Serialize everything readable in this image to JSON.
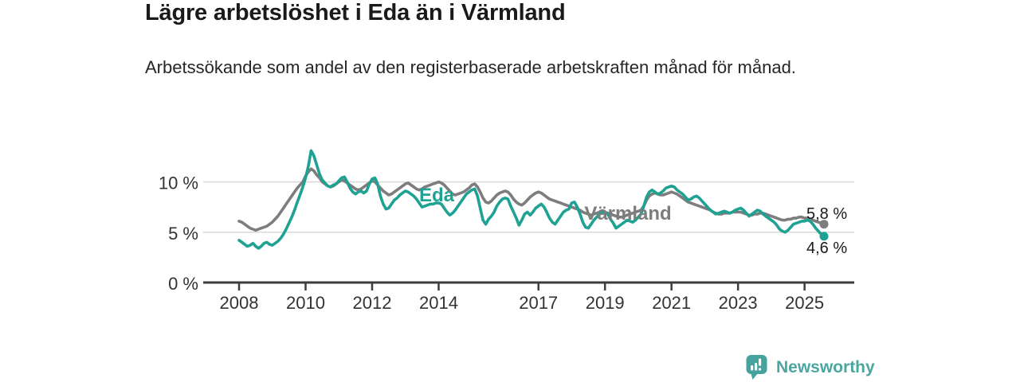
{
  "header": {
    "title": "Lägre arbetslöshet i Eda än i Värmland",
    "subtitle": "Arbetssökande som andel av den registerbaserade arbetskraften månad för månad."
  },
  "chart_data": {
    "type": "line",
    "title": "Lägre arbetslöshet i Eda än i Värmland",
    "subtitle": "Arbetssökande som andel av den registerbaserade arbetskraften månad för månad.",
    "x_unit": "month",
    "x_start": "2008-01",
    "x_end": "2025-08",
    "x_tick_labels": [
      "2008",
      "2010",
      "2012",
      "2014",
      "2017",
      "2019",
      "2021",
      "2023",
      "2025"
    ],
    "y_tick_labels": [
      "0 %",
      "5 %",
      "10 %"
    ],
    "y_tick_values": [
      0,
      5,
      10
    ],
    "ylim": [
      0,
      14
    ],
    "grid": "horizontal",
    "legend_position": "inline-labels",
    "series": [
      {
        "id": "varmland",
        "name": "Värmland",
        "color": "#7d7d7d",
        "end_label": "5,8 %",
        "end_value": 5.8,
        "values": [
          6.1,
          6.0,
          5.8,
          5.6,
          5.4,
          5.3,
          5.2,
          5.3,
          5.4,
          5.5,
          5.6,
          5.8,
          6.0,
          6.3,
          6.6,
          7.0,
          7.4,
          7.8,
          8.2,
          8.6,
          9.0,
          9.4,
          9.7,
          10.0,
          10.6,
          11.0,
          11.3,
          11.1,
          10.7,
          10.4,
          10.0,
          9.8,
          9.6,
          9.5,
          9.6,
          9.8,
          10.0,
          10.2,
          10.1,
          9.9,
          9.7,
          9.5,
          9.3,
          9.2,
          9.3,
          9.5,
          9.7,
          9.9,
          10.1,
          10.0,
          9.7,
          9.4,
          9.1,
          8.9,
          8.7,
          8.8,
          9.0,
          9.2,
          9.4,
          9.6,
          9.8,
          9.9,
          9.7,
          9.5,
          9.3,
          9.2,
          9.3,
          9.5,
          9.6,
          9.7,
          9.8,
          9.9,
          10.0,
          9.9,
          9.7,
          9.4,
          9.1,
          8.8,
          8.7,
          8.8,
          8.9,
          9.0,
          9.2,
          9.4,
          9.7,
          9.8,
          9.5,
          9.0,
          8.4,
          8.0,
          7.9,
          8.1,
          8.4,
          8.7,
          8.9,
          9.0,
          9.1,
          9.0,
          8.7,
          8.3,
          8.0,
          7.8,
          7.7,
          7.9,
          8.2,
          8.5,
          8.7,
          8.9,
          9.0,
          8.9,
          8.7,
          8.5,
          8.3,
          8.2,
          8.1,
          8.0,
          7.9,
          7.8,
          7.7,
          7.6,
          7.5,
          7.4,
          7.3,
          7.2,
          7.0,
          6.9,
          6.8,
          6.7,
          6.8,
          6.9,
          7.0,
          7.0,
          7.0,
          6.9,
          6.8,
          6.7,
          6.6,
          6.5,
          6.5,
          6.6,
          6.7,
          6.8,
          6.9,
          7.0,
          7.1,
          7.2,
          7.6,
          8.2,
          8.6,
          8.8,
          8.9,
          8.8,
          8.7,
          8.7,
          8.8,
          8.9,
          9.0,
          8.9,
          8.8,
          8.6,
          8.4,
          8.2,
          8.0,
          7.9,
          7.8,
          7.7,
          7.6,
          7.5,
          7.4,
          7.3,
          7.2,
          7.0,
          6.9,
          6.8,
          6.8,
          6.9,
          6.9,
          6.9,
          7.0,
          7.0,
          7.0,
          7.0,
          6.9,
          6.8,
          6.7,
          6.7,
          6.8,
          6.8,
          6.9,
          6.9,
          6.8,
          6.7,
          6.6,
          6.5,
          6.4,
          6.3,
          6.2,
          6.2,
          6.3,
          6.3,
          6.4,
          6.4,
          6.5,
          6.5,
          6.4,
          6.4,
          6.3,
          6.2,
          6.1,
          6.0,
          5.9,
          5.8
        ]
      },
      {
        "id": "eda",
        "name": "Eda",
        "color": "#1fa294",
        "end_label": "4,6 %",
        "end_value": 4.6,
        "values": [
          4.2,
          4.0,
          3.8,
          3.6,
          3.7,
          3.9,
          3.6,
          3.4,
          3.6,
          3.9,
          4.0,
          3.8,
          3.7,
          3.9,
          4.1,
          4.4,
          4.8,
          5.3,
          5.9,
          6.5,
          7.2,
          8.0,
          8.7,
          9.5,
          10.4,
          11.6,
          13.1,
          12.6,
          11.7,
          10.8,
          10.2,
          9.9,
          9.6,
          9.5,
          9.7,
          9.8,
          10.1,
          10.4,
          10.5,
          10.0,
          9.4,
          9.0,
          8.8,
          9.0,
          9.1,
          8.9,
          9.1,
          9.8,
          10.3,
          10.4,
          9.8,
          8.6,
          7.8,
          7.3,
          7.4,
          7.8,
          8.2,
          8.4,
          8.7,
          8.9,
          9.1,
          9.0,
          8.8,
          8.6,
          8.3,
          7.9,
          7.5,
          7.6,
          7.7,
          7.8,
          7.8,
          7.9,
          7.9,
          7.8,
          7.4,
          7.0,
          6.7,
          6.9,
          7.2,
          7.6,
          8.0,
          8.4,
          8.8,
          9.0,
          9.2,
          9.3,
          8.6,
          7.4,
          6.2,
          5.8,
          6.3,
          6.6,
          7.0,
          7.6,
          8.0,
          8.3,
          8.4,
          8.3,
          7.6,
          7.0,
          6.4,
          5.7,
          6.2,
          6.8,
          7.0,
          6.7,
          7.0,
          7.4,
          7.6,
          7.8,
          7.5,
          7.0,
          6.4,
          6.0,
          5.8,
          6.2,
          6.6,
          7.0,
          7.2,
          7.3,
          7.9,
          8.0,
          7.5,
          6.8,
          6.0,
          5.5,
          5.4,
          5.8,
          6.2,
          6.5,
          6.8,
          7.0,
          7.0,
          6.8,
          6.3,
          5.9,
          5.4,
          5.6,
          5.8,
          6.0,
          6.2,
          6.1,
          6.0,
          6.2,
          6.5,
          6.8,
          7.6,
          8.5,
          9.0,
          9.2,
          9.0,
          8.8,
          8.9,
          9.1,
          9.4,
          9.5,
          9.6,
          9.5,
          9.2,
          9.0,
          8.8,
          8.5,
          8.2,
          8.3,
          8.5,
          8.6,
          8.4,
          8.1,
          7.8,
          7.5,
          7.2,
          7.0,
          6.8,
          6.9,
          7.0,
          7.1,
          7.0,
          6.9,
          7.0,
          7.2,
          7.3,
          7.4,
          7.2,
          6.9,
          6.6,
          6.8,
          7.0,
          7.2,
          7.1,
          6.8,
          6.6,
          6.4,
          6.2,
          6.0,
          5.7,
          5.3,
          5.1,
          5.0,
          5.2,
          5.5,
          5.8,
          5.9,
          6.0,
          6.1,
          6.1,
          6.2,
          6.1,
          5.8,
          5.4,
          5.1,
          4.8,
          4.6
        ]
      }
    ]
  },
  "footer": {
    "brand": "Newsworthy",
    "brand_color": "#4ba6a0"
  },
  "colors": {
    "eda_line": "#1fa294",
    "varmland_line": "#7d7d7d",
    "gridline": "#d9d9d9",
    "axis": "#3c3c3c",
    "tick_text": "#333333",
    "title_text": "#1a1a1a"
  }
}
